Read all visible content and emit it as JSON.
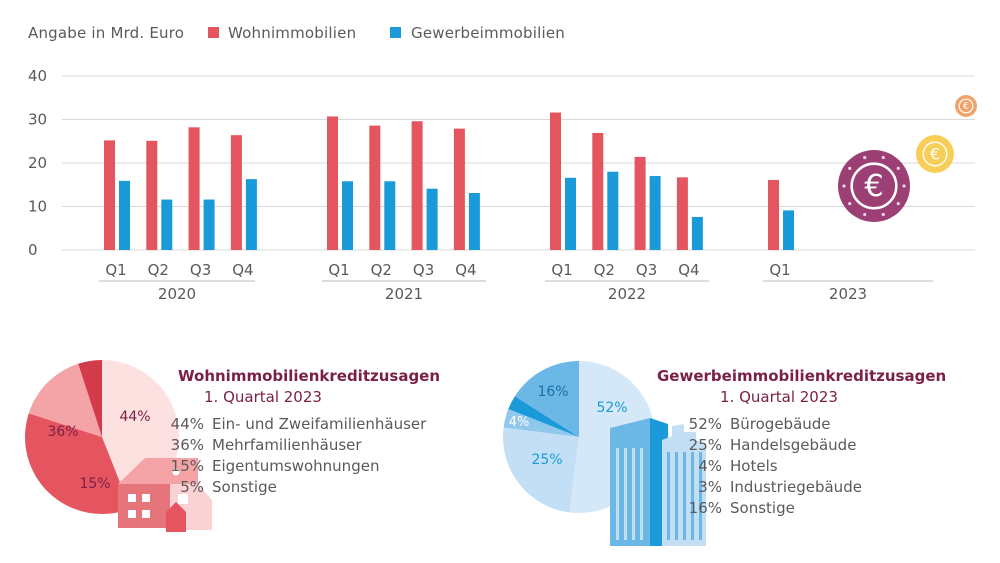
{
  "unit_label": "Angabe in Mrd. Euro",
  "colors": {
    "wohn": "#e5555f",
    "gewerbe": "#1a9ad8",
    "title": "#7a1f45",
    "text": "#5a5a5a"
  },
  "chart_data": [
    {
      "type": "bar",
      "title": "",
      "ylabel": "Angabe in Mrd. Euro",
      "ylim": [
        0,
        40
      ],
      "yticks": [
        0,
        10,
        20,
        30,
        40
      ],
      "grid": true,
      "legend": "top-left",
      "groups": [
        {
          "year": "2020",
          "quarters": [
            "Q1",
            "Q2",
            "Q3",
            "Q4"
          ]
        },
        {
          "year": "2021",
          "quarters": [
            "Q1",
            "Q2",
            "Q3",
            "Q4"
          ]
        },
        {
          "year": "2022",
          "quarters": [
            "Q1",
            "Q2",
            "Q3",
            "Q4"
          ]
        },
        {
          "year": "2023",
          "quarters": [
            "Q1"
          ]
        }
      ],
      "series": [
        {
          "name": "Wohnimmobilien",
          "color": "#e5555f",
          "values": [
            25.2,
            25.1,
            28.2,
            26.4,
            30.7,
            28.6,
            29.6,
            27.9,
            31.6,
            26.9,
            21.4,
            16.7,
            16.1
          ]
        },
        {
          "name": "Gewerbeimmobilien",
          "color": "#1a9ad8",
          "values": [
            15.9,
            11.6,
            11.6,
            16.3,
            15.8,
            15.8,
            14.1,
            13.1,
            16.6,
            18.0,
            17.0,
            7.6,
            9.1
          ]
        }
      ]
    },
    {
      "type": "pie",
      "title": "Wohnimmobilienkreditzusagen",
      "subtitle": "1. Quartal 2023",
      "slices": [
        {
          "label": "Ein- und Zweifamilienhäuser",
          "value": 44,
          "pct": "44%",
          "color": "#fde0e0"
        },
        {
          "label": "Mehrfamilienhäuser",
          "value": 36,
          "pct": "36%",
          "color": "#e5555f"
        },
        {
          "label": "Eigentumswohnungen",
          "value": 15,
          "pct": "15%",
          "color": "#f4a3a6"
        },
        {
          "label": "Sonstige",
          "value": 5,
          "pct": "5%",
          "color": "#d43b4a"
        }
      ]
    },
    {
      "type": "pie",
      "title": "Gewerbeimmobilienkreditzusagen",
      "subtitle": "1. Quartal 2023",
      "slices": [
        {
          "label": "Bürogebäude",
          "value": 52,
          "pct": "52%",
          "color": "#d5e8f8"
        },
        {
          "label": "Handelsgebäude",
          "value": 25,
          "pct": "25%",
          "color": "#c3dff6"
        },
        {
          "label": "Hotels",
          "value": 4,
          "pct": "4%",
          "color": "#8fc8ec"
        },
        {
          "label": "Industriegebäude",
          "value": 3,
          "pct": "3%",
          "color": "#1a9ad8"
        },
        {
          "label": "Sonstige",
          "value": 16,
          "pct": "16%",
          "color": "#6bb7e6"
        }
      ]
    }
  ]
}
